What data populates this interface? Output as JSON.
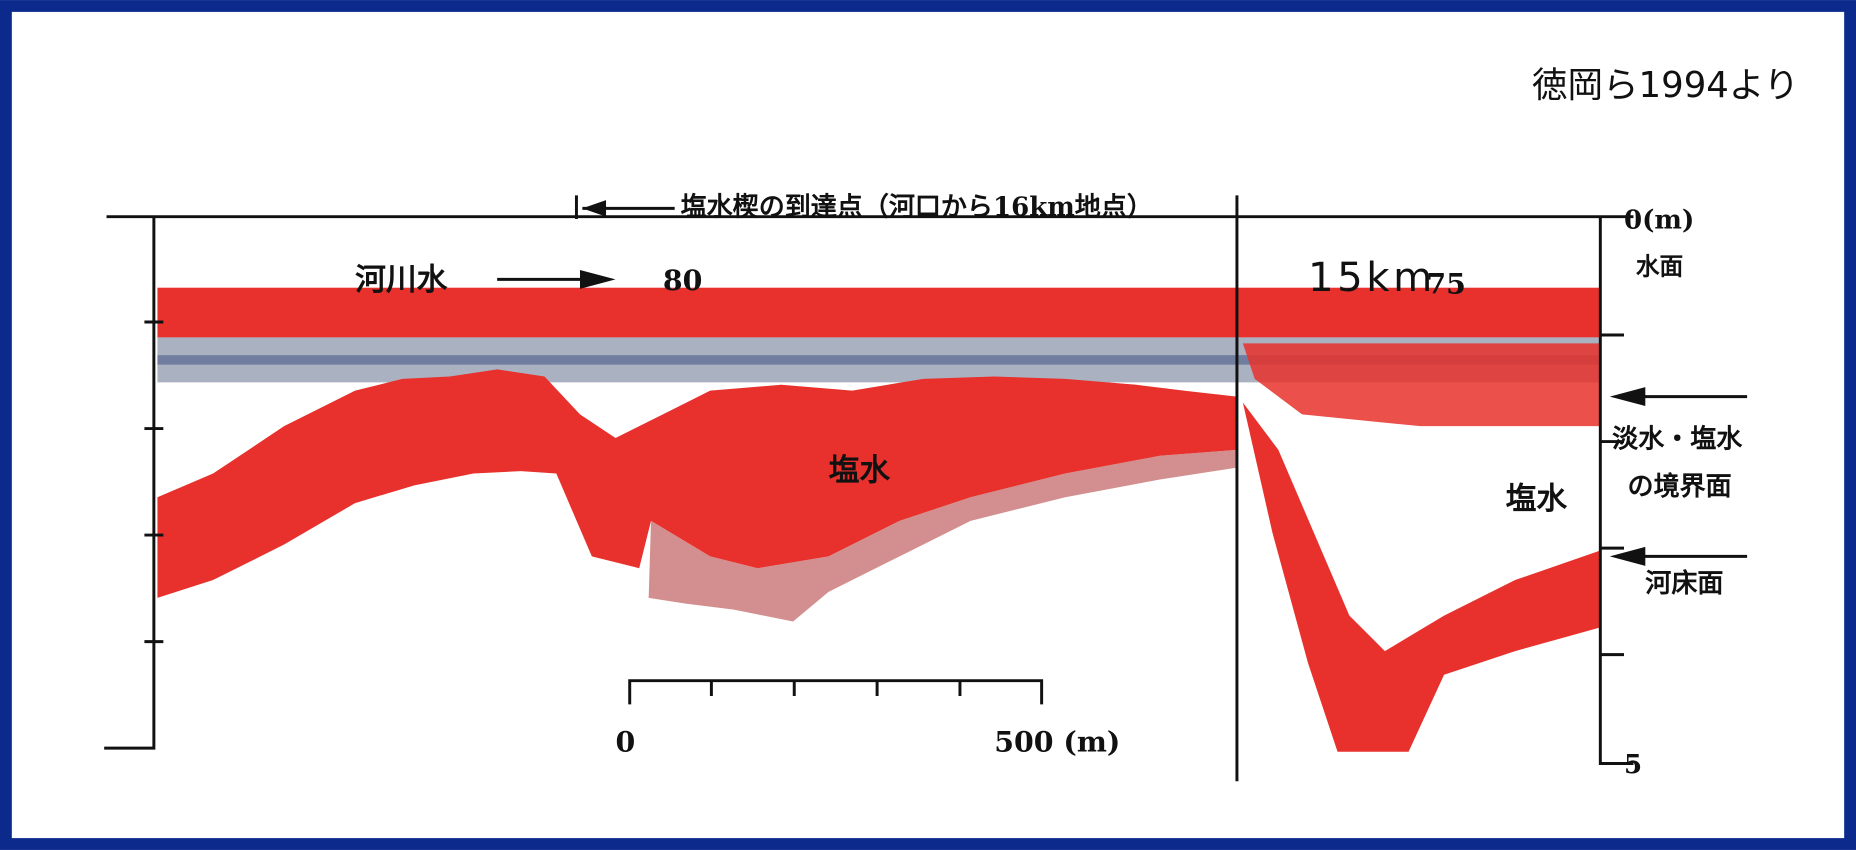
{
  "credit": "徳岡ら1994より",
  "arrival_label": "塩水楔の到達点（河口から16km地点）",
  "depth_axis": {
    "top": "0(m)",
    "surface": "水面",
    "bottom": "5"
  },
  "river_water": "河川水",
  "distance_markers": [
    "80",
    "75"
  ],
  "distance_annotation": "15km",
  "salt_water_labels": [
    "塩水",
    "塩水"
  ],
  "boundary_label": [
    "淡水・塩水",
    "の境界面"
  ],
  "riverbed_label": "河床面",
  "scale_bar": {
    "start": "0",
    "end": "500 (m)"
  }
}
